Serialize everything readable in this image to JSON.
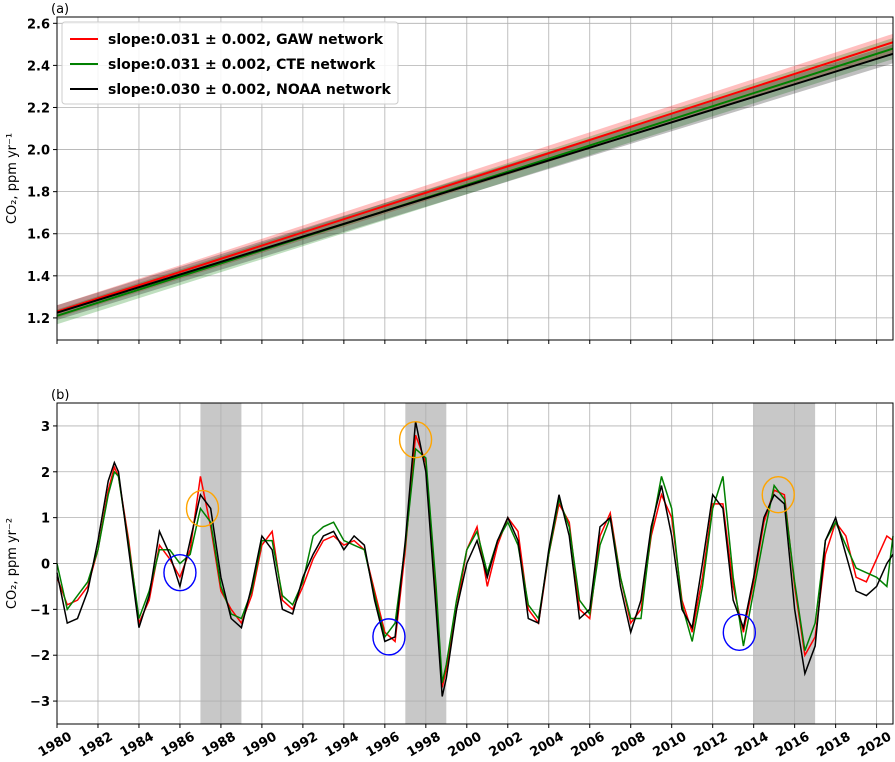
{
  "chart_data": [
    {
      "type": "line",
      "panel_label": "(a)",
      "y_label": "CO₂, ppm yr⁻¹",
      "xlim": [
        1980,
        2020.8
      ],
      "ylim": [
        1.095,
        2.63
      ],
      "yticks": [
        1.2,
        1.4,
        1.6,
        1.8,
        {
          "value": 2,
          "label": "2.0"
        },
        2.2,
        2.4,
        2.6
      ],
      "grid": true,
      "legend": "upper left",
      "x": [
        1980,
        2020.8
      ],
      "series": [
        {
          "name": "slope:0.031 ± 0.002, GAW network",
          "color": "#ff0000",
          "values": [
            1.23,
            2.51
          ],
          "band_low": [
            1.2,
            2.46
          ],
          "band_high": [
            1.26,
            2.55
          ]
        },
        {
          "name": "slope:0.031 ± 0.002, CTE network",
          "color": "#008000",
          "values": [
            1.21,
            2.48
          ],
          "band_low": [
            1.17,
            2.43
          ],
          "band_high": [
            1.24,
            2.53
          ]
        },
        {
          "name": "slope:0.030 ± 0.002, NOAA network",
          "color": "#000000",
          "values": [
            1.225,
            2.455
          ],
          "band_low": [
            1.19,
            2.41
          ],
          "band_high": [
            1.26,
            2.5
          ]
        }
      ]
    },
    {
      "type": "line",
      "panel_label": "(b)",
      "y_label": "CO₂, ppm yr⁻²",
      "xlim": [
        1980,
        2020.8
      ],
      "ylim": [
        -3.5,
        3.5
      ],
      "xticks": [
        1980,
        1982,
        1984,
        1986,
        1988,
        1990,
        1992,
        1994,
        1996,
        1998,
        2000,
        2002,
        2004,
        2006,
        2008,
        2010,
        2012,
        2014,
        2016,
        2018,
        2020
      ],
      "yticks": [
        {
          "value": -3,
          "label": "−3"
        },
        {
          "value": -2,
          "label": "−2"
        },
        {
          "value": -1,
          "label": "−1"
        },
        0,
        1,
        2,
        3
      ],
      "grid": true,
      "shaded_spans": [
        [
          1987,
          1989
        ],
        [
          1997,
          1999
        ],
        [
          2014,
          2017
        ]
      ],
      "circles": [
        {
          "x": 1987.1,
          "y": 1.2,
          "color": "#ffa500"
        },
        {
          "x": 1997.5,
          "y": 2.7,
          "color": "#ffa500"
        },
        {
          "x": 2015.2,
          "y": 1.5,
          "color": "#ffa500"
        },
        {
          "x": 1986,
          "y": -0.2,
          "color": "#0000ff"
        },
        {
          "x": 1996.2,
          "y": -1.6,
          "color": "#0000ff"
        },
        {
          "x": 2013.3,
          "y": -1.5,
          "color": "#0000ff"
        }
      ],
      "x": [
        1980,
        1980.5,
        1981,
        1981.5,
        1982,
        1982.5,
        1982.8,
        1983,
        1983.5,
        1984,
        1984.5,
        1985,
        1985.5,
        1986,
        1986.5,
        1987,
        1987.5,
        1988,
        1988.5,
        1989,
        1989.5,
        1990,
        1990.5,
        1991,
        1991.5,
        1992,
        1992.5,
        1993,
        1993.5,
        1994,
        1994.5,
        1995,
        1995.5,
        1996,
        1996.5,
        1997,
        1997.5,
        1998,
        1998.5,
        1998.8,
        1999,
        1999.5,
        2000,
        2000.5,
        2001,
        2001.5,
        2002,
        2002.5,
        2003,
        2003.5,
        2004,
        2004.5,
        2005,
        2005.5,
        2006,
        2006.5,
        2007,
        2007.5,
        2008,
        2008.5,
        2009,
        2009.5,
        2010,
        2010.5,
        2011,
        2011.5,
        2012,
        2012.5,
        2013,
        2013.5,
        2014,
        2014.5,
        2015,
        2015.5,
        2016,
        2016.5,
        2017,
        2017.5,
        2018,
        2018.5,
        2019,
        2019.5,
        2020,
        2020.5,
        2020.8
      ],
      "series": [
        {
          "name": "GAW network",
          "color": "#ff0000",
          "values": [
            -0.3,
            -0.9,
            -0.8,
            -0.5,
            0.3,
            1.6,
            2.1,
            1.9,
            0.5,
            -1.3,
            -0.8,
            0.4,
            0.1,
            -0.3,
            0.3,
            1.9,
            0.8,
            -0.6,
            -1.0,
            -1.3,
            -0.7,
            0.4,
            0.7,
            -0.8,
            -1.0,
            -0.5,
            0.1,
            0.5,
            0.6,
            0.4,
            0.5,
            0.3,
            -0.6,
            -1.5,
            -1.7,
            0.3,
            2.8,
            2.2,
            -0.7,
            -2.7,
            -2.3,
            -1.0,
            0.3,
            0.8,
            -0.5,
            0.4,
            1.0,
            0.7,
            -1.0,
            -1.3,
            0.2,
            1.3,
            0.9,
            -1.0,
            -1.2,
            0.6,
            1.1,
            -0.3,
            -1.3,
            -1.0,
            0.6,
            1.5,
            1.0,
            -0.8,
            -1.5,
            -0.3,
            1.3,
            1.3,
            -0.5,
            -1.5,
            -0.4,
            0.9,
            1.6,
            1.5,
            -0.5,
            -2.0,
            -1.6,
            0.2,
            0.9,
            0.6,
            -0.3,
            -0.4,
            0.1,
            0.6,
            0.5
          ]
        },
        {
          "name": "CTE network",
          "color": "#008000",
          "values": [
            0.0,
            -1.0,
            -0.7,
            -0.4,
            0.3,
            1.5,
            2.0,
            1.9,
            0.4,
            -1.2,
            -0.6,
            0.3,
            0.3,
            0.0,
            0.2,
            1.2,
            0.9,
            -0.5,
            -1.1,
            -1.2,
            -0.6,
            0.5,
            0.5,
            -0.7,
            -0.9,
            -0.4,
            0.6,
            0.8,
            0.9,
            0.5,
            0.4,
            0.3,
            -0.7,
            -1.6,
            -1.3,
            0.4,
            2.5,
            2.3,
            -0.5,
            -2.6,
            -2.2,
            -0.8,
            0.3,
            0.7,
            -0.2,
            0.5,
            0.9,
            0.4,
            -0.9,
            -1.2,
            0.2,
            1.4,
            0.8,
            -0.8,
            -1.1,
            0.4,
            1.0,
            -0.3,
            -1.2,
            -1.2,
            0.7,
            1.9,
            1.2,
            -0.9,
            -1.7,
            -0.5,
            1.2,
            1.9,
            -0.3,
            -1.8,
            -0.6,
            0.6,
            1.7,
            1.4,
            -0.4,
            -1.9,
            -1.3,
            0.5,
            0.9,
            0.4,
            -0.1,
            -0.2,
            -0.3,
            -0.5,
            0.6
          ]
        },
        {
          "name": "NOAA network",
          "color": "#000000",
          "values": [
            -0.2,
            -1.3,
            -1.2,
            -0.6,
            0.5,
            1.8,
            2.2,
            2.0,
            0.3,
            -1.4,
            -0.7,
            0.7,
            0.2,
            -0.5,
            0.5,
            1.5,
            1.2,
            -0.3,
            -1.2,
            -1.4,
            -0.5,
            0.6,
            0.3,
            -1.0,
            -1.1,
            -0.3,
            0.2,
            0.6,
            0.7,
            0.3,
            0.6,
            0.4,
            -0.8,
            -1.7,
            -1.6,
            0.5,
            3.1,
            2.0,
            -1.0,
            -2.9,
            -2.5,
            -1.0,
            0.0,
            0.5,
            -0.3,
            0.5,
            1.0,
            0.5,
            -1.2,
            -1.3,
            0.3,
            1.5,
            0.6,
            -1.2,
            -1.0,
            0.8,
            1.0,
            -0.5,
            -1.5,
            -0.8,
            0.8,
            1.7,
            0.6,
            -1.0,
            -1.4,
            0.0,
            1.5,
            1.2,
            -0.8,
            -1.4,
            -0.3,
            1.0,
            1.5,
            1.3,
            -1.0,
            -2.4,
            -1.8,
            0.5,
            1.0,
            0.2,
            -0.6,
            -0.7,
            -0.5,
            0.0,
            0.2
          ]
        }
      ]
    }
  ]
}
